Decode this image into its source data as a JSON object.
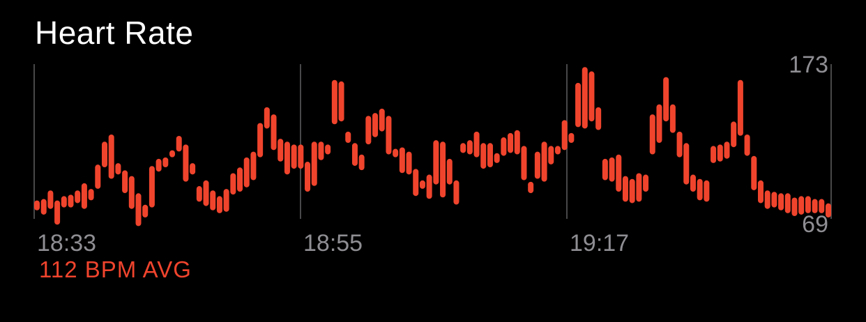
{
  "title": "Heart Rate",
  "summary": "112 BPM AVG",
  "colors": {
    "background": "#000000",
    "series": "#f0442d",
    "grid": "#48484a",
    "axis_text": "#8e8e93"
  },
  "chart_data": {
    "type": "range-bar",
    "title": "Heart Rate",
    "x_tick_labels": [
      "18:33",
      "18:55",
      "19:17"
    ],
    "y_tick_labels": [
      "173",
      "69"
    ],
    "ylim": [
      69,
      173
    ],
    "grid": "vertical at tick positions",
    "ranges": [
      [
        73,
        76
      ],
      [
        70,
        77
      ],
      [
        74,
        83
      ],
      [
        63,
        76
      ],
      [
        75,
        79
      ],
      [
        75,
        80
      ],
      [
        78,
        83
      ],
      [
        74,
        88
      ],
      [
        80,
        84
      ],
      [
        88,
        101
      ],
      [
        103,
        117
      ],
      [
        95,
        122
      ],
      [
        98,
        102
      ],
      [
        85,
        97
      ],
      [
        74,
        93
      ],
      [
        62,
        81
      ],
      [
        68,
        73
      ],
      [
        75,
        100
      ],
      [
        100,
        105
      ],
      [
        103,
        106
      ],
      [
        110,
        111
      ],
      [
        114,
        121
      ],
      [
        93,
        115
      ],
      [
        98,
        102
      ],
      [
        79,
        86
      ],
      [
        76,
        90
      ],
      [
        73,
        83
      ],
      [
        71,
        79
      ],
      [
        72,
        84
      ],
      [
        84,
        95
      ],
      [
        86,
        99
      ],
      [
        89,
        106
      ],
      [
        94,
        110
      ],
      [
        110,
        130
      ],
      [
        130,
        141
      ],
      [
        115,
        136
      ],
      [
        107,
        119
      ],
      [
        98,
        117
      ],
      [
        102,
        115
      ],
      [
        102,
        115
      ],
      [
        86,
        103
      ],
      [
        90,
        117
      ],
      [
        108,
        117
      ],
      [
        112,
        115
      ],
      [
        133,
        160
      ],
      [
        135,
        159
      ],
      [
        120,
        124
      ],
      [
        104,
        116
      ],
      [
        101,
        108
      ],
      [
        119,
        135
      ],
      [
        124,
        137
      ],
      [
        128,
        140
      ],
      [
        112,
        135
      ],
      [
        110,
        112
      ],
      [
        99,
        113
      ],
      [
        98,
        110
      ],
      [
        83,
        98
      ],
      [
        88,
        90
      ],
      [
        81,
        94
      ],
      [
        91,
        118
      ],
      [
        82,
        117
      ],
      [
        91,
        105
      ],
      [
        77,
        90
      ],
      [
        113,
        116
      ],
      [
        112,
        118
      ],
      [
        110,
        124
      ],
      [
        102,
        116
      ],
      [
        103,
        116
      ],
      [
        106,
        109
      ],
      [
        111,
        120
      ],
      [
        113,
        123
      ],
      [
        112,
        125
      ],
      [
        94,
        114
      ],
      [
        85,
        89
      ],
      [
        95,
        110
      ],
      [
        93,
        117
      ],
      [
        105,
        114
      ],
      [
        112,
        114
      ],
      [
        115,
        132
      ],
      [
        120,
        123
      ],
      [
        131,
        158
      ],
      [
        130,
        169
      ],
      [
        135,
        166
      ],
      [
        129,
        141
      ],
      [
        94,
        105
      ],
      [
        93,
        106
      ],
      [
        86,
        108
      ],
      [
        79,
        93
      ],
      [
        78,
        91
      ],
      [
        79,
        95
      ],
      [
        86,
        94
      ],
      [
        112,
        136
      ],
      [
        120,
        143
      ],
      [
        135,
        162
      ],
      [
        127,
        143
      ],
      [
        110,
        124
      ],
      [
        91,
        116
      ],
      [
        86,
        94
      ],
      [
        80,
        91
      ],
      [
        79,
        90
      ],
      [
        106,
        114
      ],
      [
        107,
        115
      ],
      [
        109,
        117
      ],
      [
        117,
        131
      ],
      [
        125,
        160
      ],
      [
        111,
        122
      ],
      [
        87,
        107
      ],
      [
        78,
        90
      ],
      [
        74,
        83
      ],
      [
        75,
        82
      ],
      [
        73,
        81
      ],
      [
        71,
        81
      ],
      [
        69,
        78
      ],
      [
        70,
        79
      ],
      [
        71,
        79
      ],
      [
        71,
        77
      ],
      [
        71,
        77
      ],
      [
        68,
        74
      ]
    ]
  }
}
